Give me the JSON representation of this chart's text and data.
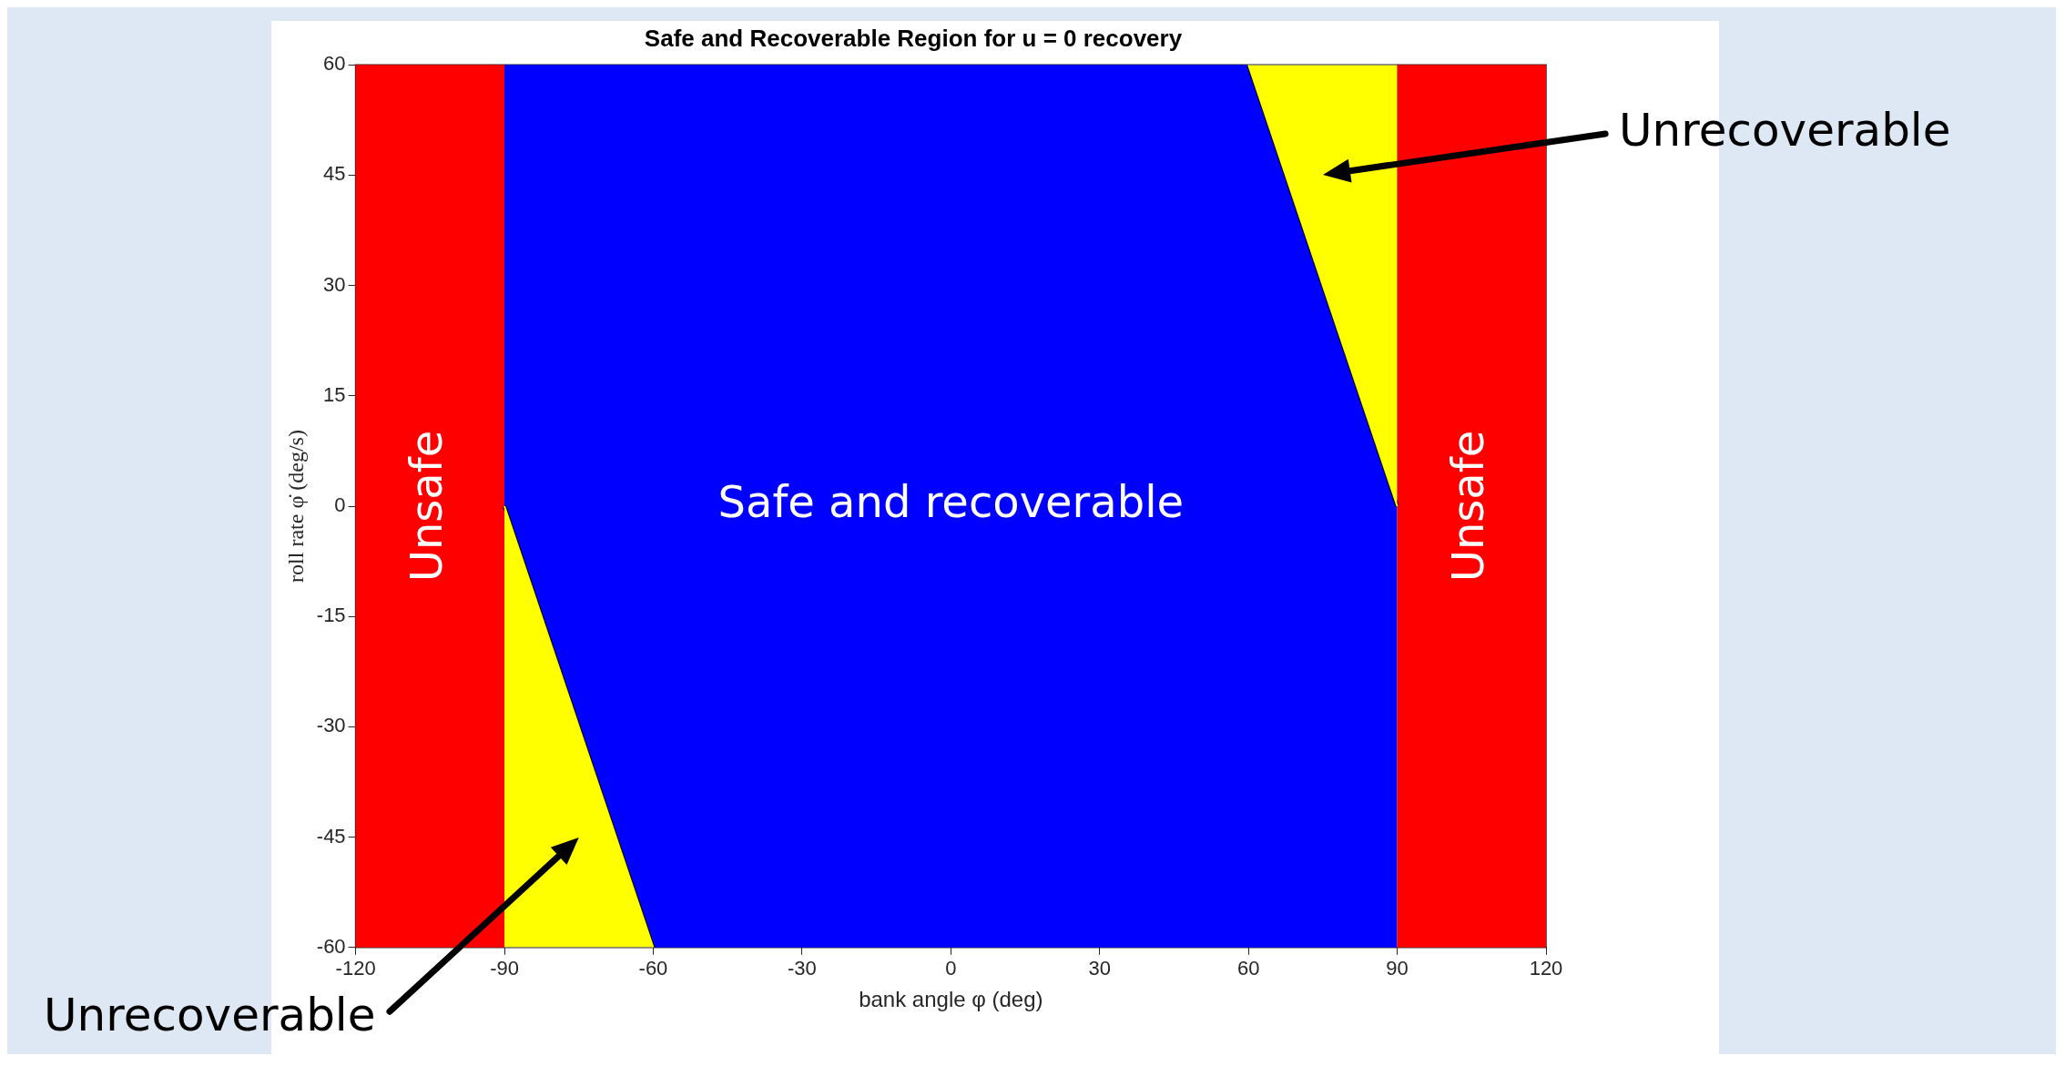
{
  "chart_data": {
    "type": "area",
    "title": "Safe and Recoverable Region for u = 0 recovery",
    "xlabel": "bank angle φ (deg)",
    "ylabel": "roll rate φ̇ (deg/s)",
    "xlim": [
      -120,
      120
    ],
    "xticks": [
      -120,
      -90,
      -60,
      -30,
      0,
      30,
      60,
      90,
      120
    ],
    "ylim": [
      -60,
      60
    ],
    "yticks": [
      -60,
      -45,
      -30,
      -15,
      0,
      15,
      30,
      45,
      60
    ],
    "grid": false,
    "legend": false,
    "bands": [
      {
        "axis": "x",
        "from": -120,
        "to": -90,
        "label": "Unsafe",
        "color": "#ff0000"
      },
      {
        "axis": "x",
        "from": -90,
        "to": 90,
        "label": "Safe and recoverable",
        "color": "#0000ff"
      },
      {
        "axis": "x",
        "from": 90,
        "to": 120,
        "label": "Unsafe",
        "color": "#ff0000"
      }
    ],
    "series": [
      {
        "color": "#ffff00",
        "x": [
          -90,
          -60
        ],
        "values": [
          0,
          -60
        ]
      },
      {
        "color": "#ffff00",
        "x": [
          60,
          90
        ],
        "values": [
          60,
          0
        ]
      }
    ],
    "annotations": [
      "Unrecoverable",
      "Unrecoverable"
    ]
  }
}
